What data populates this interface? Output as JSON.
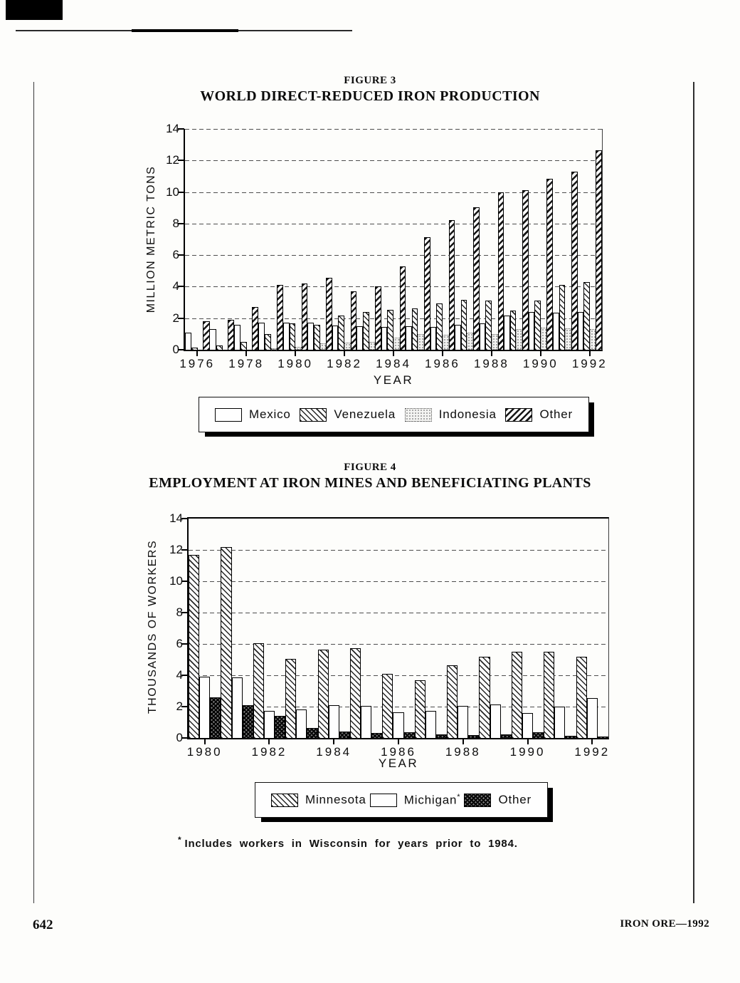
{
  "page": {
    "number": "642",
    "running_title": "IRON ORE—1992"
  },
  "figure3": {
    "label": "FIGURE 3",
    "title": "WORLD DIRECT-REDUCED IRON PRODUCTION"
  },
  "figure4": {
    "label": "FIGURE 4",
    "title": "EMPLOYMENT AT IRON MINES AND BENEFICIATING PLANTS"
  },
  "footnote": {
    "marker": "*",
    "text": "Includes workers in Wisconsin for years prior to 1984."
  },
  "chart_data": [
    {
      "type": "bar",
      "figure_label": "FIGURE 3",
      "title": "WORLD DIRECT-REDUCED IRON PRODUCTION",
      "xlabel": "YEAR",
      "ylabel": "MILLION METRIC TONS",
      "ylim": [
        0,
        14
      ],
      "yticks": [
        0,
        2,
        4,
        6,
        8,
        10,
        12,
        14
      ],
      "grid": true,
      "top_line": "dashed",
      "legend_position": "bottom",
      "categories": [
        "1976",
        "1977",
        "1978",
        "1979",
        "1980",
        "1981",
        "1982",
        "1983",
        "1984",
        "1985",
        "1986",
        "1987",
        "1988",
        "1989",
        "1990",
        "1991",
        "1992"
      ],
      "xtick_labels": [
        "1976",
        "1978",
        "1980",
        "1982",
        "1984",
        "1986",
        "1988",
        "1990",
        "1992"
      ],
      "series": [
        {
          "name": "Mexico",
          "pattern": "plain",
          "values": [
            1.1,
            1.3,
            1.6,
            1.7,
            1.7,
            1.7,
            1.55,
            1.5,
            1.45,
            1.5,
            1.45,
            1.6,
            1.65,
            2.15,
            2.4,
            2.35,
            2.4
          ]
        },
        {
          "name": "Venezuela",
          "pattern": "hatch-back",
          "values": [
            0.15,
            0.25,
            0.5,
            1.0,
            1.65,
            1.6,
            2.15,
            2.4,
            2.55,
            2.6,
            2.95,
            3.15,
            3.1,
            2.5,
            3.1,
            4.1,
            4.3
          ]
        },
        {
          "name": "Indonesia",
          "pattern": "dotted",
          "values": [
            0,
            0,
            0,
            0.1,
            0.2,
            0.4,
            0.45,
            0.5,
            0.75,
            1.0,
            0.95,
            1.1,
            1.0,
            1.3,
            1.4,
            1.35,
            1.3
          ]
        },
        {
          "name": "Other",
          "pattern": "hatch-fwd",
          "values": [
            1.8,
            1.9,
            2.7,
            4.1,
            4.2,
            4.55,
            3.7,
            4.0,
            5.3,
            7.15,
            8.2,
            9.05,
            10.0,
            10.1,
            10.85,
            11.3,
            12.65
          ]
        }
      ]
    },
    {
      "type": "bar",
      "figure_label": "FIGURE 4",
      "title": "EMPLOYMENT AT IRON MINES AND BENEFICIATING PLANTS",
      "xlabel": "YEAR",
      "ylabel": "THOUSANDS OF WORKERS",
      "ylim": [
        0,
        14
      ],
      "yticks": [
        0,
        2,
        4,
        6,
        8,
        10,
        12,
        14
      ],
      "grid": true,
      "top_line": "solid",
      "legend_position": "bottom",
      "categories": [
        "1980",
        "1981",
        "1982",
        "1983",
        "1984",
        "1985",
        "1986",
        "1987",
        "1988",
        "1989",
        "1990",
        "1991",
        "1992"
      ],
      "xtick_labels": [
        "1980",
        "1982",
        "1984",
        "1986",
        "1988",
        "1990",
        "1992"
      ],
      "series": [
        {
          "name": "Minnesota",
          "pattern": "hatch-back",
          "values": [
            11.7,
            12.2,
            6.05,
            5.05,
            5.65,
            5.75,
            4.1,
            3.7,
            4.65,
            5.2,
            5.5,
            5.5,
            5.2
          ]
        },
        {
          "name": "Michigan",
          "pattern": "plain",
          "suffix": "*",
          "values": [
            3.9,
            3.85,
            1.75,
            1.8,
            2.1,
            2.05,
            1.65,
            1.75,
            2.05,
            2.15,
            1.6,
            2.0,
            2.55
          ]
        },
        {
          "name": "Other",
          "pattern": "cross-dark",
          "values": [
            2.6,
            2.1,
            1.4,
            0.65,
            0.4,
            0.3,
            0.35,
            0.25,
            0.2,
            0.25,
            0.35,
            0.15,
            0.1
          ]
        }
      ]
    }
  ]
}
